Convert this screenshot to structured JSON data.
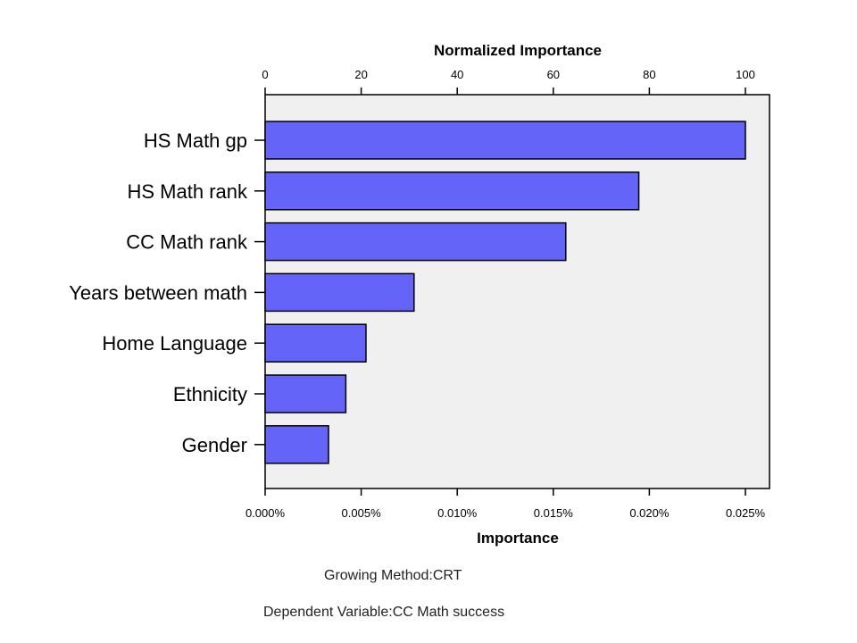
{
  "chart_data": {
    "type": "bar",
    "orientation": "horizontal",
    "categories": [
      "HS Math gp",
      "HS Math rank",
      "CC Math rank",
      "Years between math",
      "Home Language",
      "Ethnicity",
      "Gender"
    ],
    "values": [
      0.025,
      0.01945,
      0.01565,
      0.00775,
      0.00525,
      0.0042,
      0.0033
    ],
    "value_unit": "%",
    "xlabel": "Importance",
    "x_ticks": [
      "0.000%",
      "0.005%",
      "0.010%",
      "0.015%",
      "0.020%",
      "0.025%"
    ],
    "xlim": [
      0,
      0.026
    ],
    "top_axis_label": "Normalized Importance",
    "top_axis_ticks": [
      "0",
      "20",
      "40",
      "60",
      "80",
      "100"
    ],
    "grid": false,
    "bar_color": "#6464F8",
    "plot_background": "#F0F0F0"
  },
  "footnotes": {
    "growing_method": "Growing Method:CRT",
    "dependent_variable": "Dependent Variable:CC Math success"
  }
}
